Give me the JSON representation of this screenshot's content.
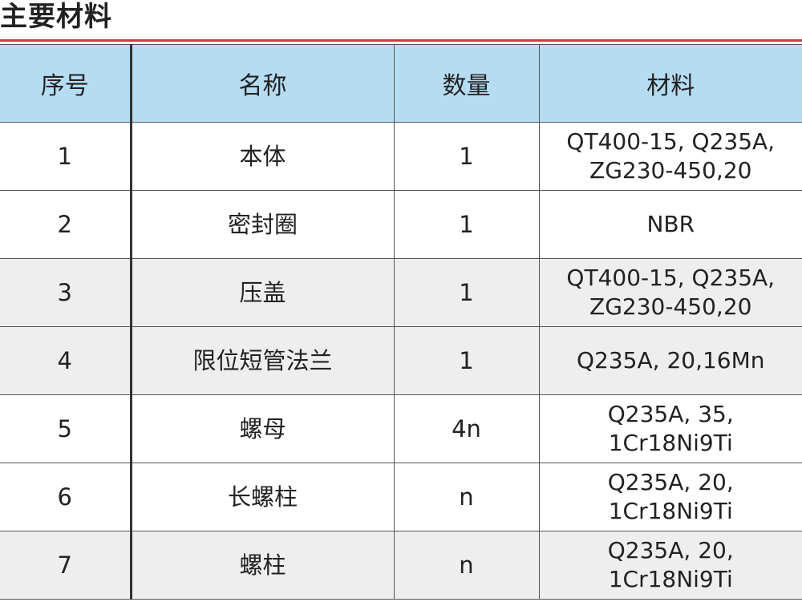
{
  "header": {
    "title": "主要材料"
  },
  "table": {
    "columns": [
      "序号",
      "名称",
      "数量",
      "材料"
    ],
    "rows": [
      [
        "1",
        "本体",
        "1",
        "QT400-15, Q235A, ZG230-450,20"
      ],
      [
        "2",
        "密封圈",
        "1",
        "NBR"
      ],
      [
        "3",
        "压盖",
        "1",
        "QT400-15, Q235A, ZG230-450,20"
      ],
      [
        "4",
        "限位短管法兰",
        "1",
        "Q235A, 20,16Mn"
      ],
      [
        "5",
        "螺母",
        "4n",
        "Q235A, 35, 1Cr18Ni9Ti"
      ],
      [
        "6",
        "长螺柱",
        "n",
        "Q235A, 20, 1Cr18Ni9Ti"
      ],
      [
        "7",
        "螺柱",
        "n",
        "Q235A, 20, 1Cr18Ni9Ti"
      ]
    ]
  }
}
